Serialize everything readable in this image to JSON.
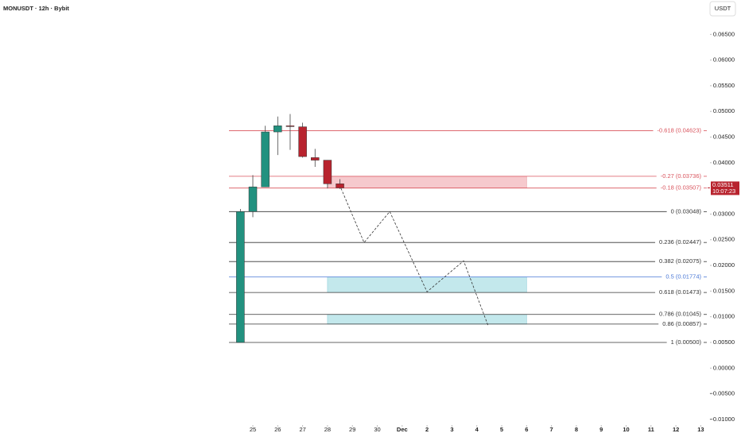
{
  "header": {
    "symbol": "MONUSDT · 12h · Bybit",
    "currency": "USDT"
  },
  "chart_data": {
    "type": "candlestick",
    "x": [
      24.5,
      25,
      25.5,
      26,
      26.5,
      27,
      27.5,
      28,
      28.5
    ],
    "open": [
      0.005,
      0.0305,
      0.0353,
      0.046,
      0.0472,
      0.047,
      0.041,
      0.0405,
      0.0359
    ],
    "high": [
      0.031,
      0.0376,
      0.0472,
      0.049,
      0.0495,
      0.0478,
      0.0427,
      0.0405,
      0.0368
    ],
    "low": [
      0.005,
      0.0294,
      0.0353,
      0.0415,
      0.0425,
      0.041,
      0.0392,
      0.035,
      0.0349
    ],
    "close": [
      0.03048,
      0.0353,
      0.046,
      0.0472,
      0.0471,
      0.0412,
      0.0405,
      0.0359,
      0.03511
    ],
    "up_color": "#22917f",
    "down_color": "#b8232e",
    "xlim": [
      14.84,
      43.37
    ],
    "xticks": [
      25,
      26,
      27,
      28,
      29,
      30,
      {
        "value": 31,
        "label": "Dec"
      },
      {
        "value": 32,
        "label": "2"
      },
      {
        "value": 33,
        "label": "3"
      },
      {
        "value": 34,
        "label": "4"
      },
      {
        "value": 35,
        "label": "5"
      },
      {
        "value": 36,
        "label": "6"
      },
      {
        "value": 37,
        "label": "7"
      },
      {
        "value": 38,
        "label": "8"
      },
      {
        "value": 39,
        "label": "9"
      },
      {
        "value": 40,
        "label": "10"
      },
      {
        "value": 41,
        "label": "11"
      },
      {
        "value": 42,
        "label": "12"
      },
      {
        "value": 43,
        "label": "13"
      }
    ],
    "ylim": [
      -0.0111,
      0.0717
    ],
    "yticks": [
      {
        "value": 0.065,
        "label": "0.06500"
      },
      {
        "value": 0.06,
        "label": "0.06000"
      },
      {
        "value": 0.055,
        "label": "0.05500"
      },
      {
        "value": 0.05,
        "label": "0.05000"
      },
      {
        "value": 0.045,
        "label": "0.04500"
      },
      {
        "value": 0.04,
        "label": "0.04000"
      },
      {
        "value": 0.03,
        "label": "0.03000"
      },
      {
        "value": 0.025,
        "label": "0.02500"
      },
      {
        "value": 0.02,
        "label": "0.02000"
      },
      {
        "value": 0.015,
        "label": "0.01500"
      },
      {
        "value": 0.01,
        "label": "0.01000"
      },
      {
        "value": 0.005,
        "label": "0.00500"
      },
      {
        "value": 0,
        "label": "0.00000"
      },
      {
        "value": -0.005,
        "label": "−0.00500"
      },
      {
        "value": -0.01,
        "label": "−0.01000"
      }
    ],
    "levels": [
      {
        "label": "-0.618 (0.04623)",
        "value": 0.04623,
        "color": "#d9535c"
      },
      {
        "label": "-0.27 (0.03736)",
        "value": 0.03736,
        "color": "#d9535c"
      },
      {
        "label": "-0.18 (0.03507)",
        "value": 0.03507,
        "color": "#d9535c"
      },
      {
        "label": "0 (0.03048)",
        "value": 0.03048,
        "color": "#333333"
      },
      {
        "label": "0.236 (0.02447)",
        "value": 0.02447,
        "color": "#333333"
      },
      {
        "label": "0.382 (0.02075)",
        "value": 0.02075,
        "color": "#333333"
      },
      {
        "label": "0.5 (0.01774)",
        "value": 0.01774,
        "color": "#4a78d6"
      },
      {
        "label": "0.618 (0.01473)",
        "value": 0.01473,
        "color": "#333333"
      },
      {
        "label": "0.786 (0.01045)",
        "value": 0.01045,
        "color": "#333333"
      },
      {
        "label": "0.86 (0.00857)",
        "value": 0.00857,
        "color": "#333333"
      },
      {
        "label": "1 (0.00500)",
        "value": 0.005,
        "color": "#333333"
      }
    ],
    "zones": [
      {
        "x": [
          28,
          36
        ],
        "y": [
          0.03507,
          0.03736
        ],
        "color": "#f6c9cd"
      },
      {
        "x": [
          28,
          36
        ],
        "y": [
          0.01473,
          0.01774
        ],
        "color": "#c3e8ec"
      },
      {
        "x": [
          28,
          36
        ],
        "y": [
          0.00857,
          0.01045
        ],
        "color": "#c3e8ec"
      }
    ],
    "projection": {
      "x": [
        28.48,
        29.47,
        30.5,
        32,
        33.47,
        34.46
      ],
      "values": [
        0.03575,
        0.02445,
        0.03049,
        0.01486,
        0.02089,
        0.0082
      ]
    },
    "last_price": {
      "value": 0.03511,
      "label": "0.03511",
      "countdown": "10:07:23"
    }
  }
}
